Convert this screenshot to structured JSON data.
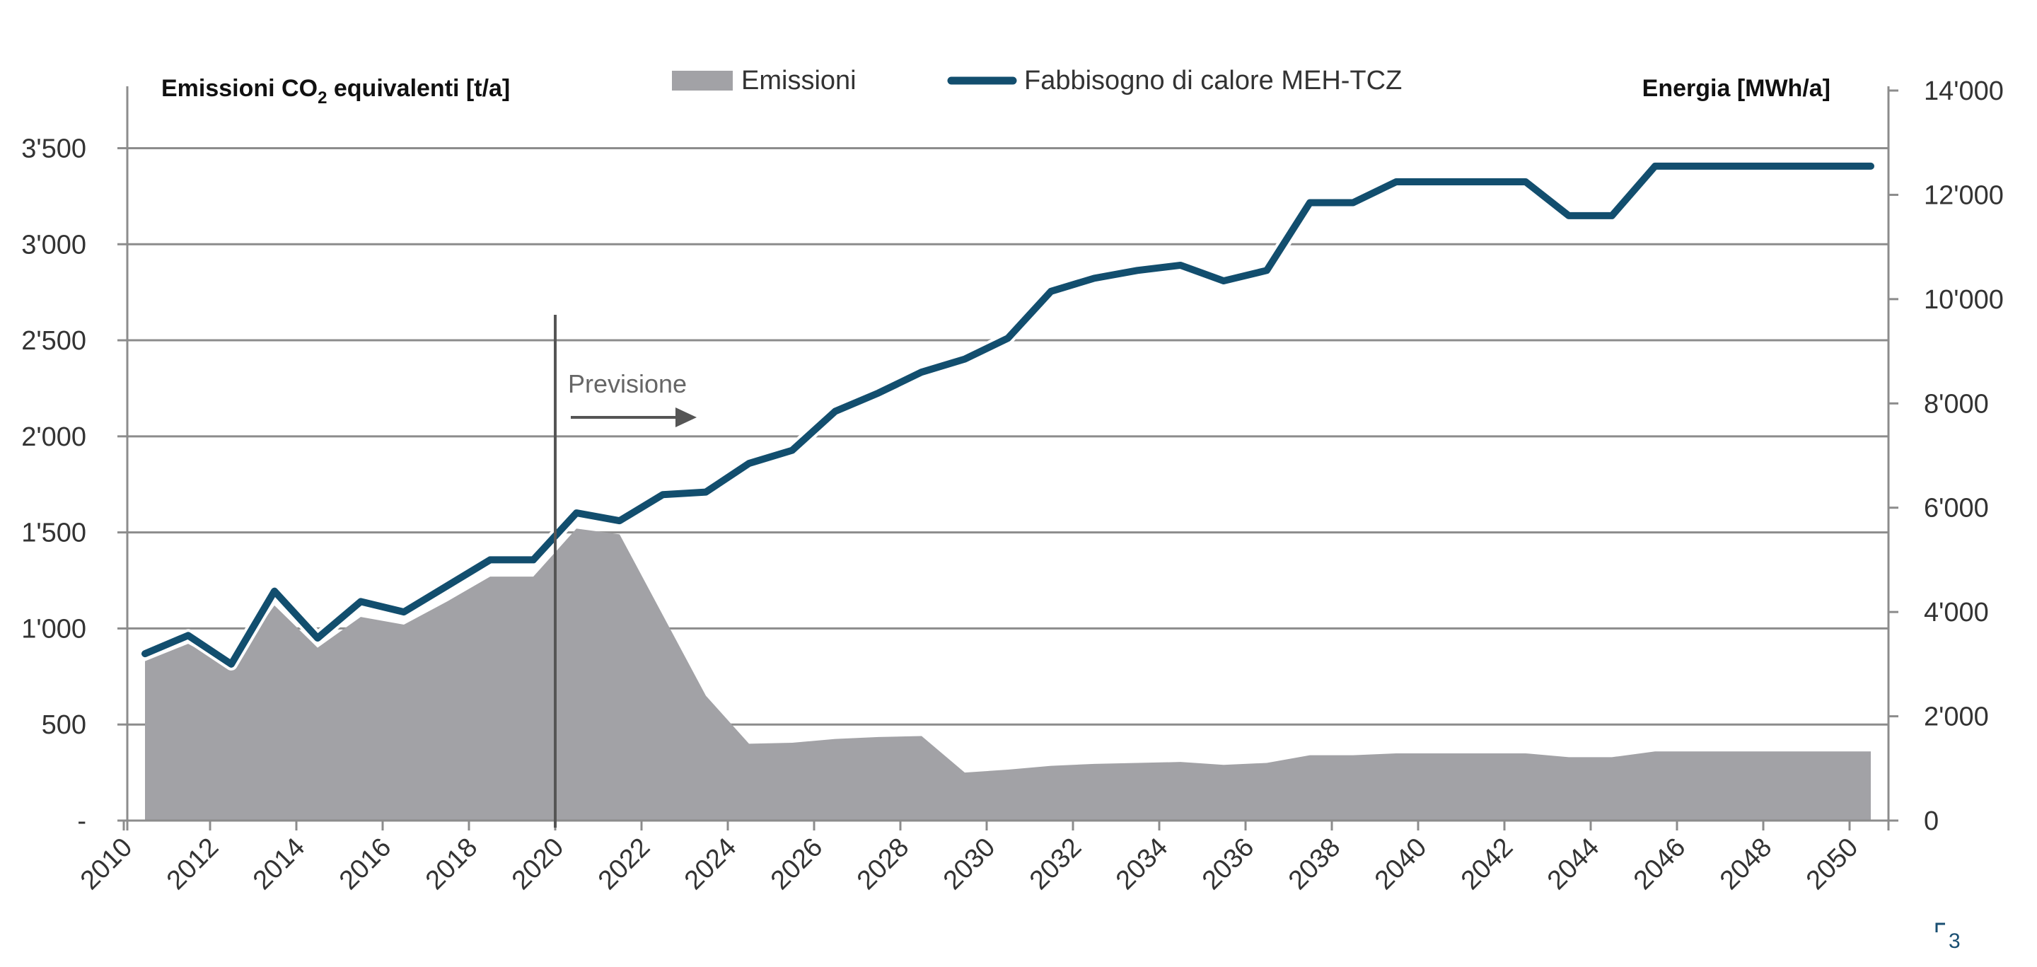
{
  "chart_data": {
    "type": "area",
    "x": [
      2010,
      2011,
      2012,
      2013,
      2014,
      2015,
      2016,
      2017,
      2018,
      2019,
      2020,
      2021,
      2022,
      2023,
      2024,
      2025,
      2026,
      2027,
      2028,
      2029,
      2030,
      2031,
      2032,
      2033,
      2034,
      2035,
      2036,
      2037,
      2038,
      2039,
      2040,
      2041,
      2042,
      2043,
      2044,
      2045,
      2046,
      2047,
      2048,
      2049,
      2050
    ],
    "x_ticks": [
      "2010",
      "2012",
      "2014",
      "2016",
      "2018",
      "2020",
      "2022",
      "2024",
      "2026",
      "2028",
      "2030",
      "2032",
      "2034",
      "2036",
      "2038",
      "2040",
      "2042",
      "2044",
      "2046",
      "2048",
      "2050"
    ],
    "series": [
      {
        "name": "Emissioni",
        "kind": "area",
        "axis": "left",
        "color": "#a2a2a6",
        "values": [
          830,
          920,
          800,
          1120,
          900,
          1060,
          1020,
          1140,
          1270,
          1270,
          1520,
          1490,
          1070,
          650,
          400,
          405,
          425,
          435,
          440,
          250,
          265,
          285,
          295,
          300,
          305,
          290,
          300,
          340,
          340,
          350,
          350,
          350,
          350,
          330,
          330,
          360,
          360,
          360,
          360,
          360,
          360
        ]
      },
      {
        "name": "Fabbisogno di calore MEH-TCZ",
        "kind": "line",
        "axis": "right",
        "color": "#124e6e",
        "values": [
          3200,
          3550,
          3000,
          4400,
          3500,
          4200,
          4000,
          4500,
          5000,
          5000,
          5900,
          5750,
          6250,
          6300,
          6850,
          7100,
          7850,
          8200,
          8600,
          8850,
          9250,
          10150,
          10400,
          10550,
          10650,
          10350,
          10550,
          11850,
          11850,
          12250,
          12250,
          12250,
          12250,
          11600,
          11600,
          12550,
          12550,
          12550,
          12550,
          12550,
          12550
        ]
      }
    ],
    "left_axis": {
      "title": "Emissioni CO",
      "title_sub": "2",
      "title_rest": " equivalenti [t/a]",
      "ylim": [
        0,
        3800
      ],
      "ticks": [
        0,
        500,
        1000,
        1500,
        2000,
        2500,
        3000,
        3500
      ],
      "tick_labels": [
        "-",
        "500",
        "1'000",
        "1'500",
        "2'000",
        "2'500",
        "3'000",
        "3'500"
      ]
    },
    "right_axis": {
      "title": "Energia [MWh/a]",
      "ylim": [
        0,
        14000
      ],
      "ticks": [
        0,
        2000,
        4000,
        6000,
        8000,
        10000,
        12000,
        14000
      ],
      "tick_labels": [
        "0",
        "2'000",
        "4'000",
        "6'000",
        "8'000",
        "10'000",
        "12'000",
        "14'000"
      ]
    },
    "annotation": {
      "text": "Previsione",
      "at_x": 2020
    },
    "grid": true,
    "legend": {
      "position": "top-center",
      "items": [
        "Emissioni",
        "Fabbisogno di calore MEH-TCZ"
      ]
    }
  },
  "footer": {
    "mark": "3"
  },
  "colors": {
    "grid": "#8c8c8c",
    "axis": "#8c8c8c",
    "divider": "#555555",
    "arrow": "#555555"
  }
}
